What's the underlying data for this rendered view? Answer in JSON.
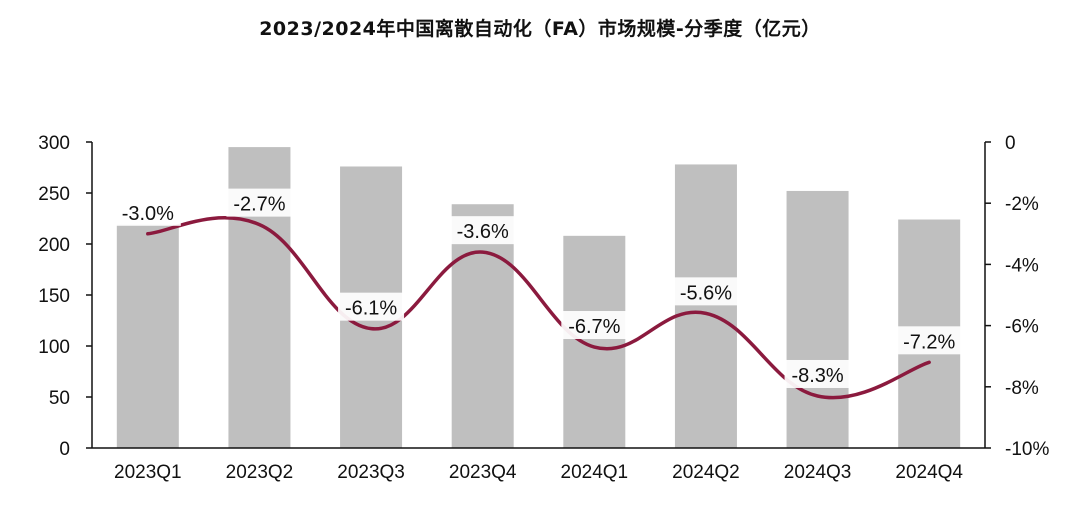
{
  "chart_data": {
    "type": "bar",
    "title": "2023/2024年中国离散自动化（FA）市场规模-分季度（亿元）",
    "categories": [
      "2023Q1",
      "2023Q2",
      "2023Q3",
      "2023Q4",
      "2024Q1",
      "2024Q2",
      "2024Q3",
      "2024Q4"
    ],
    "bar_series": {
      "values": [
        219,
        295,
        276,
        239,
        208,
        278,
        252,
        224
      ],
      "color": "#bfbfbf",
      "axis": "left"
    },
    "line_series": {
      "values": [
        -3.0,
        -2.7,
        -6.1,
        -3.6,
        -6.7,
        -5.6,
        -8.3,
        -7.2
      ],
      "labels": [
        "-3.0%",
        "-2.7%",
        "-6.1%",
        "-3.6%",
        "-6.7%",
        "-5.6%",
        "-8.3%",
        "-7.2%"
      ],
      "color": "#8b1a3e",
      "axis": "right"
    },
    "left_axis": {
      "ylim": [
        0,
        300
      ],
      "ticks": [
        0,
        50,
        100,
        150,
        200,
        250,
        300
      ],
      "tick_labels": [
        "0",
        "50",
        "100",
        "150",
        "200",
        "250",
        "300"
      ]
    },
    "right_axis": {
      "ylim": [
        -10,
        0
      ],
      "ticks": [
        0,
        -2,
        -4,
        -6,
        -8,
        -10
      ],
      "tick_labels": [
        "0",
        "-2%",
        "-4%",
        "-6%",
        "-8%",
        "-10%"
      ]
    },
    "grid": false,
    "legend": "none"
  }
}
